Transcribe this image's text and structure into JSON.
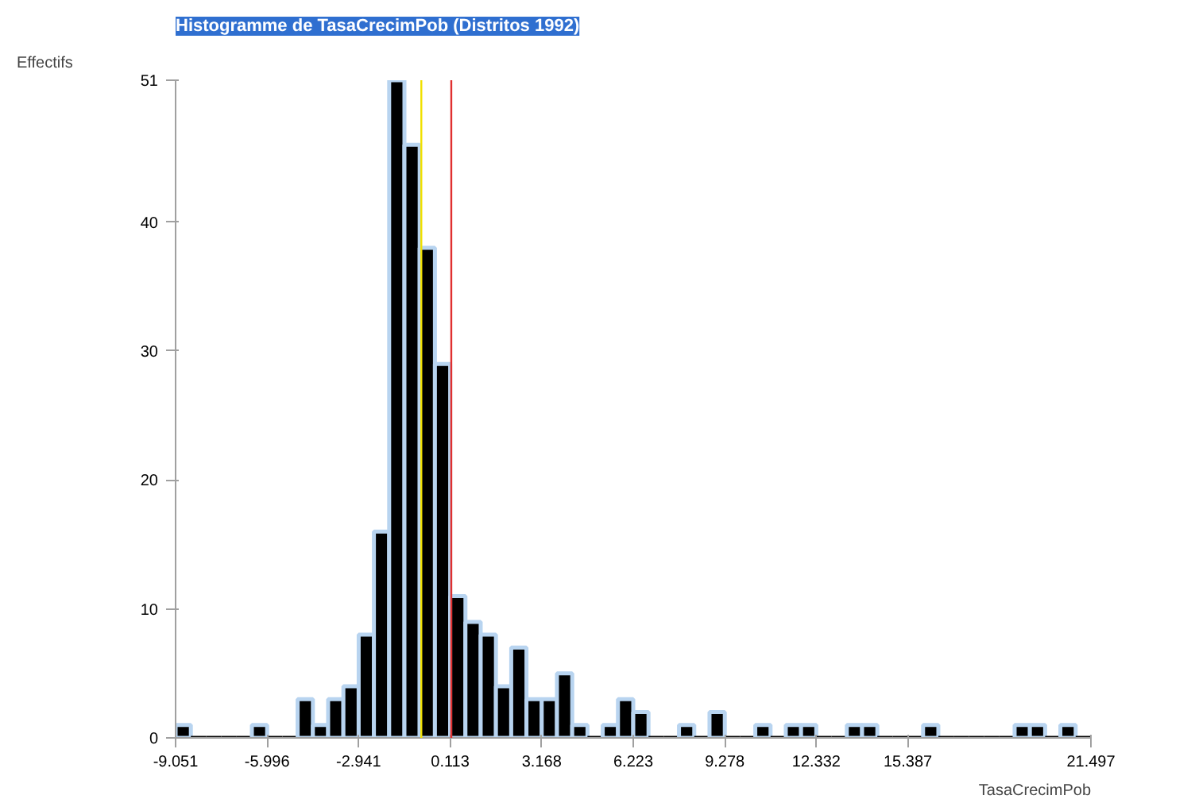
{
  "chart_data": {
    "type": "histogram",
    "title": "Histogramme de TasaCrecimPob (Distritos 1992)",
    "ylabel": "Effectifs",
    "xlabel": "TasaCrecimPob",
    "bins": [
      -9.051,
      -8.542,
      -8.033,
      -7.524,
      -7.014,
      -6.505,
      -5.996,
      -5.487,
      -4.978,
      -4.469,
      -3.96,
      -3.451,
      -2.941,
      -2.432,
      -1.923,
      -1.414,
      -0.905,
      -0.396,
      0.113,
      0.622,
      1.131,
      1.64,
      2.15,
      2.659,
      3.168,
      3.677,
      4.186,
      4.695,
      5.204,
      5.713,
      6.223,
      6.732,
      7.241,
      7.75,
      8.259,
      8.768,
      9.278,
      9.787,
      10.296,
      10.805,
      11.314,
      11.823,
      12.332,
      12.842,
      13.351,
      13.86,
      14.369,
      14.878,
      15.387,
      15.896,
      16.405,
      16.914,
      17.424,
      17.933,
      18.442,
      18.951,
      19.46,
      19.969,
      20.478,
      20.988,
      21.497
    ],
    "values": [
      1,
      0,
      0,
      0,
      0,
      1,
      0,
      0,
      3,
      1,
      3,
      4,
      8,
      16,
      51,
      46,
      38,
      29,
      11,
      9,
      8,
      4,
      7,
      3,
      3,
      5,
      1,
      0,
      1,
      3,
      2,
      0,
      0,
      1,
      0,
      2,
      0,
      0,
      1,
      0,
      1,
      1,
      0,
      0,
      1,
      1,
      0,
      0,
      0,
      1,
      0,
      0,
      0,
      0,
      0,
      1,
      1,
      0,
      1,
      0
    ],
    "color": "#000000",
    "xlim": [
      -9.051,
      21.497
    ],
    "ylim": [
      0,
      51
    ],
    "xticks": [
      {
        "value": -9.051,
        "label": "-9.051"
      },
      {
        "value": -5.996,
        "label": "-5.996"
      },
      {
        "value": -2.941,
        "label": "-2.941"
      },
      {
        "value": 0.113,
        "label": "0.113"
      },
      {
        "value": 3.168,
        "label": "3.168"
      },
      {
        "value": 6.223,
        "label": "6.223"
      },
      {
        "value": 9.278,
        "label": "9.278"
      },
      {
        "value": 12.332,
        "label": "12.332"
      },
      {
        "value": 15.387,
        "label": "15.387"
      },
      {
        "value": 21.497,
        "label": "21.497"
      }
    ],
    "yticks": [
      0,
      10,
      20,
      30,
      40,
      51
    ],
    "ref_lines": [
      {
        "axis": "x",
        "value": -0.85,
        "color": "#f0e000"
      },
      {
        "axis": "x",
        "value": 0.15,
        "color": "#e03030"
      }
    ],
    "grid": false
  }
}
